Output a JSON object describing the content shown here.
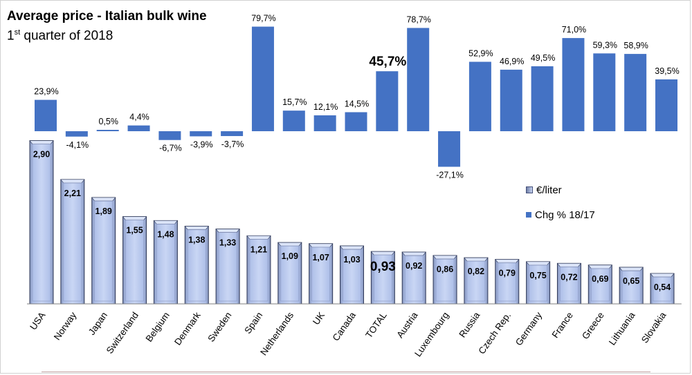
{
  "title": "Average price - Italian bulk wine",
  "subtitle_prefix": "1",
  "subtitle_sup": "st",
  "subtitle_rest": " quarter of 2018",
  "legend": {
    "price_label": "€/liter",
    "chg_label": "Chg % 18/17"
  },
  "colors": {
    "chg_bar": "#4472c4",
    "price_top": "#aebfe8",
    "price_edge": "#303a5a"
  },
  "chart_data": {
    "type": "bar",
    "title": "Average price - Italian bulk wine",
    "categories": [
      "USA",
      "Norway",
      "Japan",
      "Switzerland",
      "Belgium",
      "Denmark",
      "Sweden",
      "Spain",
      "Netherlands",
      "UK",
      "Canada",
      "TOTAL",
      "Austria",
      "Luxembourg",
      "Russia",
      "Czech Rep.",
      "Germany",
      "France",
      "Greece",
      "Lithuania",
      "Slovakia"
    ],
    "series": [
      {
        "name": "€/liter",
        "values": [
          2.9,
          2.21,
          1.89,
          1.55,
          1.48,
          1.38,
          1.33,
          1.21,
          1.09,
          1.07,
          1.03,
          0.93,
          0.92,
          0.86,
          0.82,
          0.79,
          0.75,
          0.72,
          0.69,
          0.65,
          0.54
        ],
        "labels": [
          "2,90",
          "2,21",
          "1,89",
          "1,55",
          "1,48",
          "1,38",
          "1,33",
          "1,21",
          "1,09",
          "1,07",
          "1,03",
          "0,93",
          "0,92",
          "0,86",
          "0,82",
          "0,79",
          "0,75",
          "0,72",
          "0,69",
          "0,65",
          "0,54"
        ]
      },
      {
        "name": "Chg % 18/17",
        "values": [
          23.9,
          -4.1,
          0.5,
          4.4,
          -6.7,
          -3.9,
          -3.7,
          79.7,
          15.7,
          12.1,
          14.5,
          45.7,
          78.7,
          -27.1,
          52.9,
          46.9,
          49.5,
          71.0,
          59.3,
          58.9,
          39.5
        ],
        "labels": [
          "23,9%",
          "-4,1%",
          "0,5%",
          "4,4%",
          "-6,7%",
          "-3,9%",
          "-3,7%",
          "79,7%",
          "15,7%",
          "12,1%",
          "14,5%",
          "45,7%",
          "78,7%",
          "-27,1%",
          "52,9%",
          "46,9%",
          "49,5%",
          "71,0%",
          "59,3%",
          "58,9%",
          "39,5%"
        ]
      }
    ],
    "highlight_category": "TOTAL",
    "xlabel": "",
    "ylabel": ""
  }
}
